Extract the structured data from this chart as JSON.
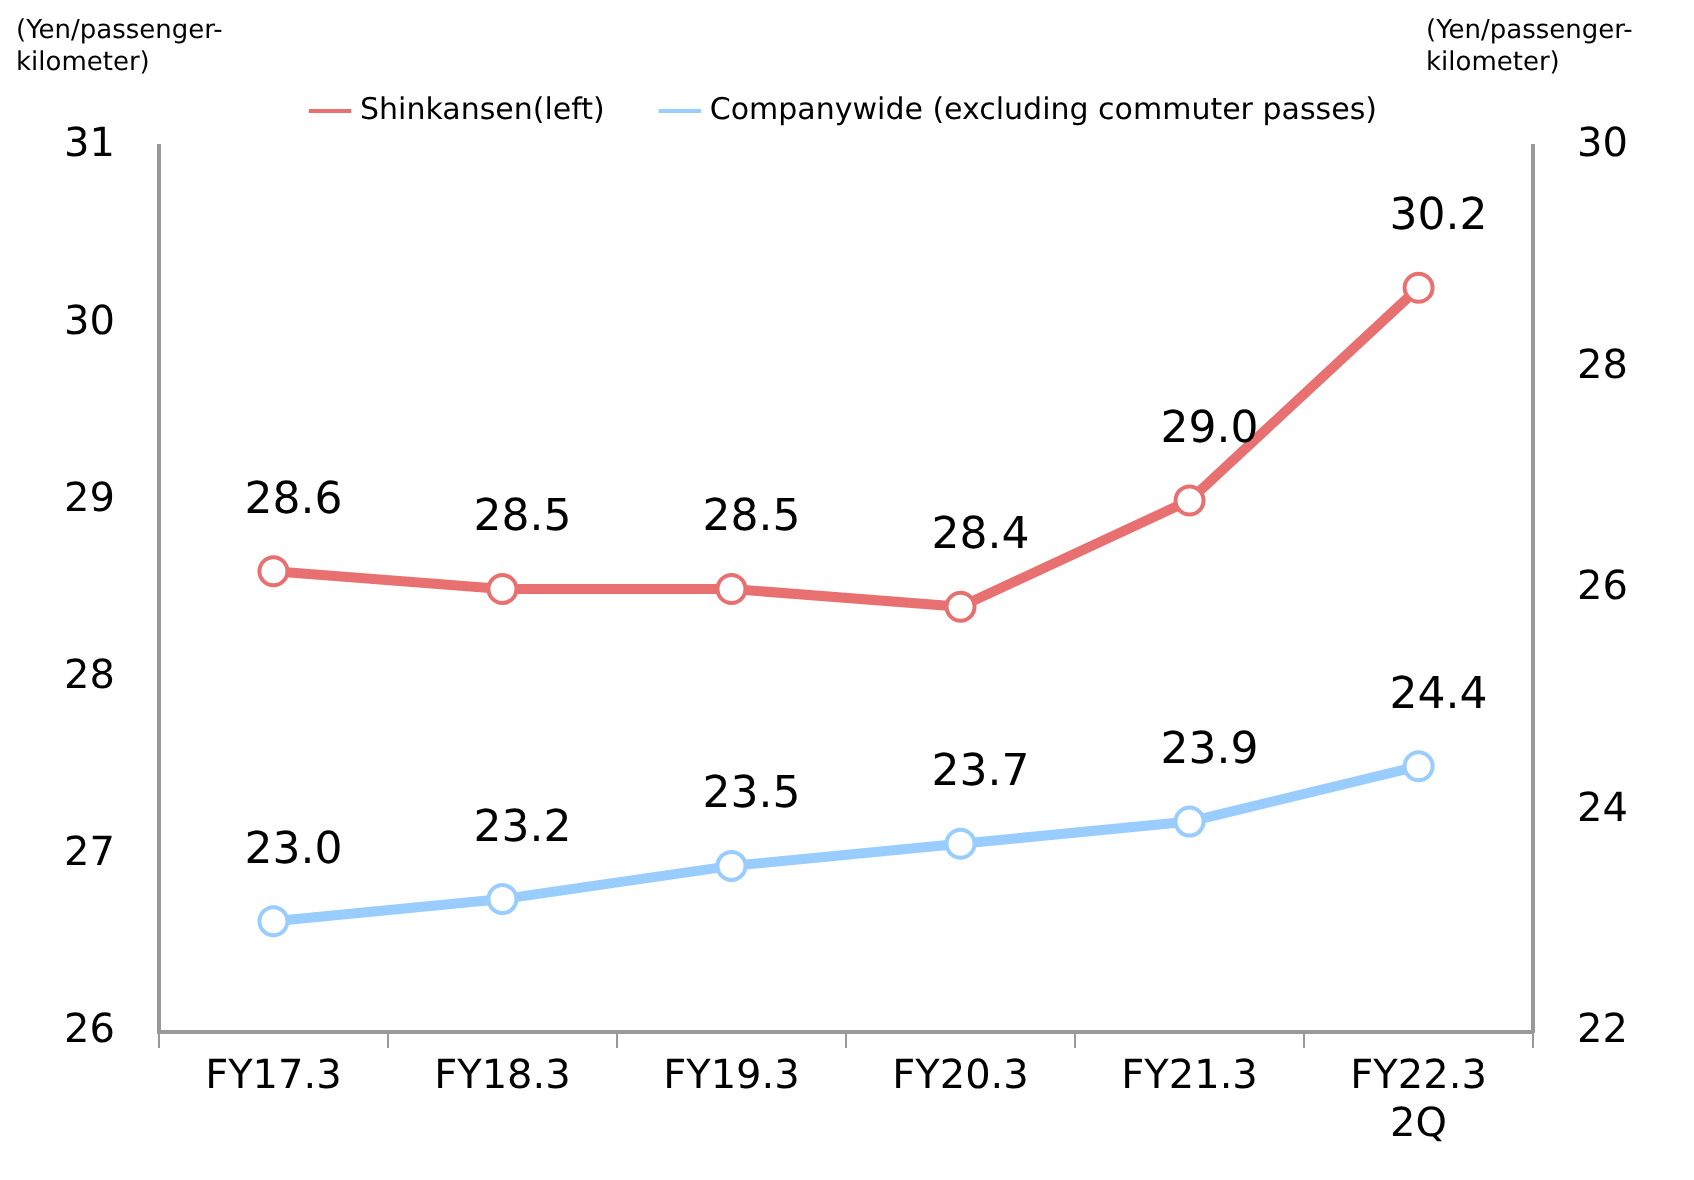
{
  "chart_data": {
    "type": "line",
    "ylabel": "(Yen/passenger-kilometer)",
    "y2label": "(Yen/passenger-kilometer)",
    "categories": [
      "FY17.3",
      "FY18.3",
      "FY19.3",
      "FY20.3",
      "FY21.3",
      "FY22.3\n2Q"
    ],
    "series": [
      {
        "name": "Shinkansen(left)",
        "color": "#e87070",
        "values": [
          28.6,
          28.5,
          28.5,
          28.4,
          29.0,
          30.2
        ],
        "value_labels": [
          "28.6",
          "28.5",
          "28.5",
          "28.4",
          "29.0",
          "30.2"
        ]
      },
      {
        "name": "Companywide (excluding commuter passes)",
        "color": "#99ccff",
        "axis": "y2",
        "values": [
          23.0,
          23.2,
          23.5,
          23.7,
          23.9,
          24.4
        ],
        "value_labels": [
          "23.0",
          "23.2",
          "23.5",
          "23.7",
          "23.9",
          "24.4"
        ]
      }
    ],
    "ylim": [
      26,
      31
    ],
    "yticks": [
      26,
      27,
      28,
      29,
      30,
      31
    ],
    "y2lim": [
      22,
      30
    ],
    "y2ticks": [
      22,
      24,
      26,
      28,
      30
    ],
    "marker": "circle",
    "line_style": "solid",
    "legend": "top",
    "grid": false
  }
}
